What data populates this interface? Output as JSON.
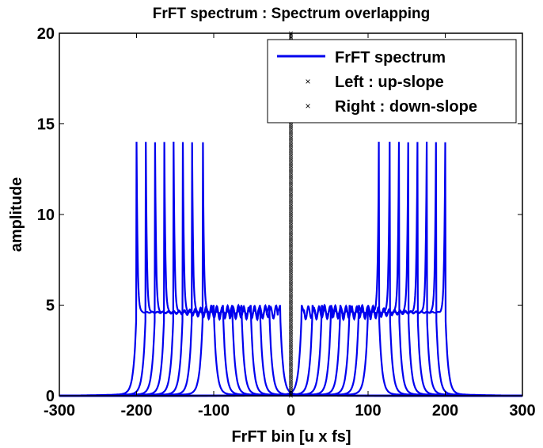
{
  "chart_data": {
    "type": "line",
    "title": "FrFT spectrum : Spectrum overlapping",
    "xlabel": "FrFT bin [u x fs]",
    "ylabel": "amplitude",
    "xlim": [
      -300,
      300
    ],
    "ylim": [
      0,
      20
    ],
    "xticks": [
      "-300",
      "-200",
      "-100",
      "0",
      "100",
      "200",
      "300"
    ],
    "yticks": [
      "0",
      "5",
      "10",
      "15",
      "20"
    ],
    "grid": false,
    "legend_position": "top-right",
    "colors": {
      "spectrum": "#0000ee",
      "markers": "#000000"
    },
    "series": [
      {
        "name": "FrFT spectrum",
        "kind": "line",
        "peak_amplitude": 14,
        "plateau_amplitude": 4.6,
        "edge_amplitude": 5,
        "left_group_peaks": [
          -200,
          -188,
          -176,
          -164,
          -152,
          -140,
          -128,
          -114
        ],
        "right_group_peaks": [
          114,
          128,
          140,
          152,
          164,
          176,
          188,
          200
        ],
        "component_width": 100
      },
      {
        "name": "Left : up-slope",
        "kind": "markers",
        "marker": "×",
        "x": 0,
        "y_range": [
          0,
          20
        ]
      },
      {
        "name": "Right : down-slope",
        "kind": "markers",
        "marker": "×",
        "x": 0,
        "y_range": [
          0,
          20
        ]
      }
    ]
  }
}
